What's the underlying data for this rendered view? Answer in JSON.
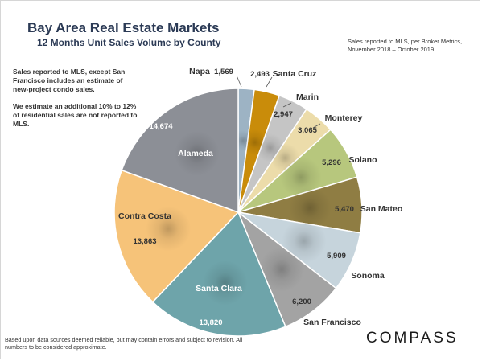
{
  "header": {
    "title": "Bay Area Real Estate Markets",
    "subtitle": "12 Months Unit Sales Volume by County",
    "source": "Sales reported to MLS, per Broker Metrics, November 2018 – October 2019"
  },
  "notes": {
    "note1": "Sales reported to MLS, except San Francisco includes an estimate of new-project condo sales.",
    "note2": "We estimate an additional 10% to 12% of residential sales are not reported to MLS."
  },
  "footer": {
    "disclaimer": "Based upon data sources deemed reliable, but may contain errors and subject to revision. All numbers to be considered approximate."
  },
  "logo": {
    "text": "COMPASS"
  },
  "chart_data": {
    "type": "pie",
    "title": "12 Months Unit Sales Volume by County",
    "slices": [
      {
        "label": "Napa",
        "value": 1569,
        "color": "#9db3c4"
      },
      {
        "label": "Santa Cruz",
        "value": 2493,
        "color": "#c98c0a"
      },
      {
        "label": "Marin",
        "value": 2947,
        "color": "#c5c5c5"
      },
      {
        "label": "Monterey",
        "value": 3065,
        "color": "#ecdcaa"
      },
      {
        "label": "Solano",
        "value": 5296,
        "color": "#b7c77d"
      },
      {
        "label": "San Mateo",
        "value": 5470,
        "color": "#8f7d43"
      },
      {
        "label": "Sonoma",
        "value": 5909,
        "color": "#c6d4dc"
      },
      {
        "label": "San Francisco",
        "value": 6200,
        "color": "#a3a3a3"
      },
      {
        "label": "Santa Clara",
        "value": 13820,
        "color": "#6ea4aa"
      },
      {
        "label": "Contra Costa",
        "value": 13863,
        "color": "#f6c379"
      },
      {
        "label": "Alameda",
        "value": 14674,
        "color": "#8c8f96"
      }
    ]
  }
}
